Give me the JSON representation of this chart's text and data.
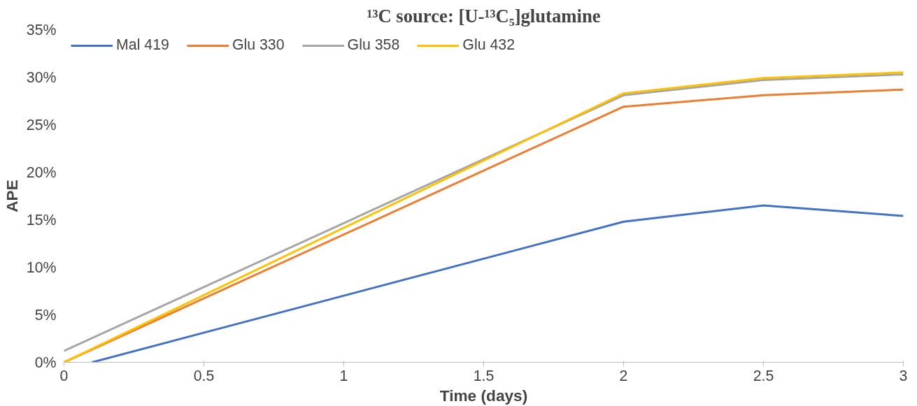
{
  "chart_data": {
    "type": "line",
    "title": "¹³C source: [U-¹³C₅]glutamine",
    "xlabel": "Time (days)",
    "ylabel": "APE",
    "x": [
      0,
      2,
      2.5,
      3
    ],
    "series": [
      {
        "name": "Mal 419",
        "color": "#4472c4",
        "x": [
          0.1,
          2,
          2.5,
          3
        ],
        "values": [
          0,
          14.8,
          16.5,
          15.4
        ]
      },
      {
        "name": "Glu 330",
        "color": "#ed7d31",
        "values": [
          0,
          26.9,
          28.1,
          28.7
        ]
      },
      {
        "name": "Glu 358",
        "color": "#a5a5a5",
        "values": [
          1.2,
          28.1,
          29.7,
          30.3
        ]
      },
      {
        "name": "Glu 432",
        "color": "#ffc000",
        "values": [
          0,
          28.3,
          29.9,
          30.5
        ]
      }
    ],
    "xlim": [
      0,
      3
    ],
    "xticks": [
      0,
      0.5,
      1,
      1.5,
      2,
      2.5,
      3
    ],
    "ylim": [
      0,
      35
    ],
    "yticks": [
      {
        "value": 0,
        "label": "0%"
      },
      {
        "value": 5,
        "label": "5%"
      },
      {
        "value": 10,
        "label": "10%"
      },
      {
        "value": 15,
        "label": "15%"
      },
      {
        "value": 20,
        "label": "20%"
      },
      {
        "value": 25,
        "label": "25%"
      },
      {
        "value": 30,
        "label": "30%"
      },
      {
        "value": 35,
        "label": "35%"
      }
    ],
    "grid": false,
    "legend": "top left",
    "marker": "none",
    "line_style": "solid"
  }
}
